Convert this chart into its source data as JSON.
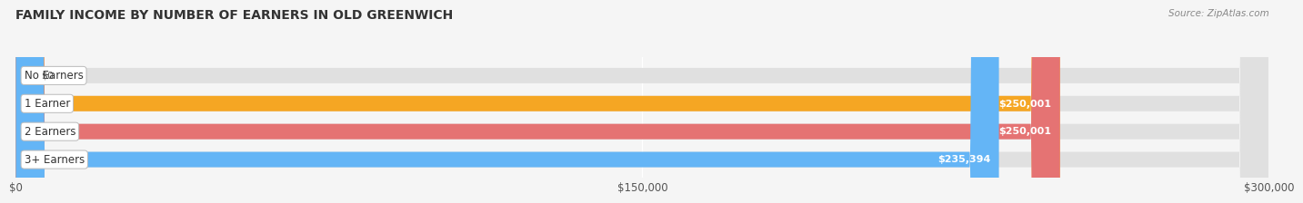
{
  "title": "FAMILY INCOME BY NUMBER OF EARNERS IN OLD GREENWICH",
  "source": "Source: ZipAtlas.com",
  "categories": [
    "No Earners",
    "1 Earner",
    "2 Earners",
    "3+ Earners"
  ],
  "values": [
    0,
    250001,
    250001,
    235394
  ],
  "bar_colors": [
    "#f48fb1",
    "#f5a623",
    "#e57373",
    "#64b5f6"
  ],
  "bar_bg_color": "#e0e0e0",
  "x_max": 300000,
  "x_ticks": [
    0,
    150000,
    300000
  ],
  "x_tick_labels": [
    "$0",
    "$150,000",
    "$300,000"
  ],
  "value_labels": [
    "$0",
    "$250,001",
    "$250,001",
    "$235,394"
  ],
  "fig_bg_color": "#f5f5f5",
  "title_fontsize": 10,
  "bar_label_fontsize": 8.5,
  "value_fontsize": 8,
  "source_fontsize": 7.5
}
